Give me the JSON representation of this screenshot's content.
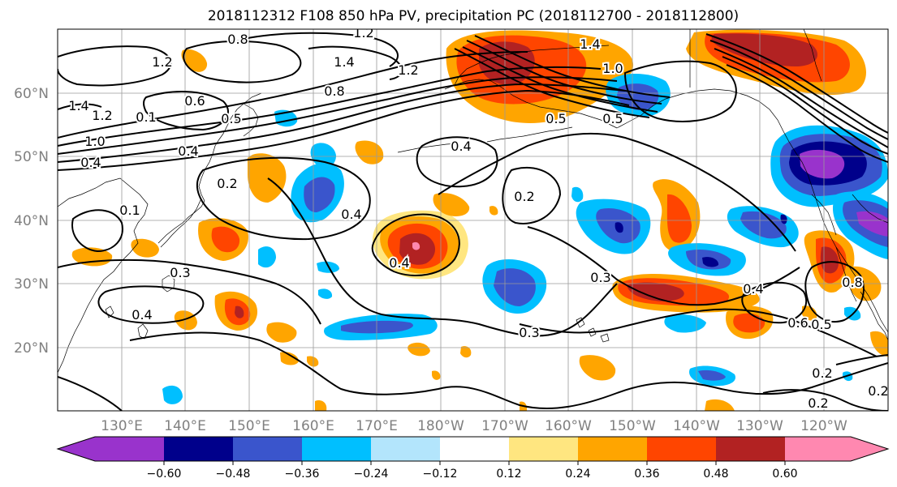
{
  "title": "2018112312 F108 850 hPa PV, precipitation PC (2018112700 - 2018112800)",
  "lat_labels": [
    "60°N",
    "50°N",
    "40°N",
    "30°N",
    "20°N"
  ],
  "lon_labels": [
    "130°E",
    "140°E",
    "150°E",
    "160°E",
    "170°E",
    "180°W",
    "170°W",
    "160°W",
    "150°W",
    "140°W",
    "130°W",
    "120°W"
  ],
  "colorbar": {
    "tick_labels": [
      "−0.60",
      "−0.48",
      "−0.36",
      "−0.24",
      "−0.12",
      "0.12",
      "0.24",
      "0.36",
      "0.48",
      "0.60"
    ],
    "colors": [
      "#9933cc",
      "#00008b",
      "#3a55cc",
      "#00bfff",
      "#b3e5fc",
      "#ffffff",
      "#ffe680",
      "#ffa500",
      "#ff4500",
      "#b22222",
      "#ff88b0"
    ]
  },
  "contour_labels": [
    "0.8",
    "1.2",
    "1.2",
    "1.4",
    "1.2",
    "1.4",
    "1.0",
    "0.8",
    "0.6",
    "0.5",
    "0.1",
    "0.4",
    "1.4",
    "1.2",
    "1.0",
    "0.4",
    "0.2",
    "0.4",
    "0.1",
    "0.4",
    "0.2",
    "0.4",
    "0.3",
    "0.4",
    "0.3",
    "0.3",
    "0.5",
    "0.4",
    "0.5",
    "0.6",
    "0.5",
    "0.8",
    "0.2",
    "0.2",
    "0.2"
  ]
}
